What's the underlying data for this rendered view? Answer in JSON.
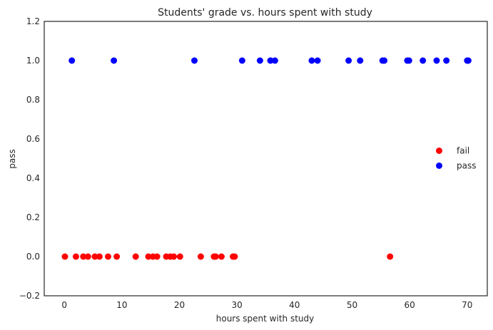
{
  "chart_data": {
    "type": "scatter",
    "title": "Students' grade vs. hours spent with study",
    "xlabel": "hours spent with study",
    "ylabel": "pass",
    "xlim": [
      -3.5,
      73.5
    ],
    "ylim": [
      -0.2,
      1.2
    ],
    "xticks": [
      0,
      10,
      20,
      30,
      40,
      50,
      60,
      70
    ],
    "yticks": [
      -0.2,
      0.0,
      0.2,
      0.4,
      0.6,
      0.8,
      1.0,
      1.2
    ],
    "ytick_labels": [
      "−0.2",
      "0.0",
      "0.2",
      "0.4",
      "0.6",
      "0.8",
      "1.0",
      "1.2"
    ],
    "grid": false,
    "legend_position": "center-right",
    "series": [
      {
        "name": "fail",
        "color": "#ff0000",
        "points": [
          [
            0.1,
            0
          ],
          [
            2.0,
            0
          ],
          [
            3.3,
            0
          ],
          [
            4.1,
            0
          ],
          [
            5.3,
            0
          ],
          [
            6.1,
            0
          ],
          [
            7.6,
            0
          ],
          [
            9.1,
            0
          ],
          [
            12.4,
            0
          ],
          [
            14.6,
            0
          ],
          [
            15.4,
            0
          ],
          [
            16.1,
            0
          ],
          [
            17.7,
            0
          ],
          [
            18.4,
            0
          ],
          [
            19.0,
            0
          ],
          [
            20.1,
            0
          ],
          [
            23.7,
            0
          ],
          [
            26.0,
            0
          ],
          [
            26.3,
            0
          ],
          [
            27.3,
            0
          ],
          [
            29.3,
            0
          ],
          [
            29.6,
            0
          ],
          [
            56.6,
            0
          ]
        ]
      },
      {
        "name": "pass",
        "color": "#0000ff",
        "points": [
          [
            1.3,
            1
          ],
          [
            8.6,
            1
          ],
          [
            22.6,
            1
          ],
          [
            30.9,
            1
          ],
          [
            34.0,
            1
          ],
          [
            35.8,
            1
          ],
          [
            36.6,
            1
          ],
          [
            43.0,
            1
          ],
          [
            44.0,
            1
          ],
          [
            49.4,
            1
          ],
          [
            51.4,
            1
          ],
          [
            55.3,
            1
          ],
          [
            55.6,
            1
          ],
          [
            59.6,
            1
          ],
          [
            59.9,
            1
          ],
          [
            62.3,
            1
          ],
          [
            64.7,
            1
          ],
          [
            66.4,
            1
          ],
          [
            70.0,
            1
          ],
          [
            70.2,
            1
          ]
        ]
      }
    ]
  }
}
